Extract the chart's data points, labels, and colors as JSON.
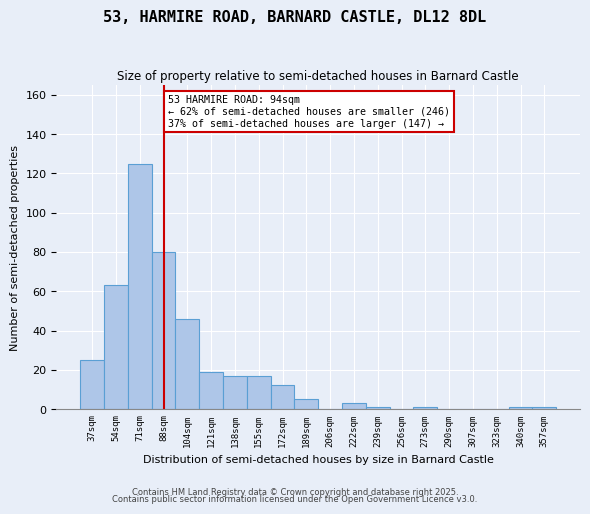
{
  "title": "53, HARMIRE ROAD, BARNARD CASTLE, DL12 8DL",
  "subtitle": "Size of property relative to semi-detached houses in Barnard Castle",
  "xlabel": "Distribution of semi-detached houses by size in Barnard Castle",
  "ylabel": "Number of semi-detached properties",
  "bar_values": [
    25,
    63,
    125,
    80,
    46,
    19,
    17,
    17,
    12,
    5,
    0,
    3,
    1,
    0,
    1,
    0,
    0,
    0,
    1,
    1
  ],
  "bin_labels": [
    "37sqm",
    "54sqm",
    "71sqm",
    "88sqm",
    "104sqm",
    "121sqm",
    "138sqm",
    "155sqm",
    "172sqm",
    "189sqm",
    "206sqm",
    "222sqm",
    "239sqm",
    "256sqm",
    "273sqm",
    "290sqm",
    "307sqm",
    "323sqm",
    "340sqm",
    "357sqm"
  ],
  "bar_color": "#aec6e8",
  "bar_edge_color": "#5a9fd4",
  "vline_x": 3.0,
  "vline_color": "#cc0000",
  "annotation_text": "53 HARMIRE ROAD: 94sqm\n← 62% of semi-detached houses are smaller (246)\n37% of semi-detached houses are larger (147) →",
  "annotation_box_color": "#ffffff",
  "annotation_box_edge": "#cc0000",
  "ylim": [
    0,
    165
  ],
  "yticks": [
    0,
    20,
    40,
    60,
    80,
    100,
    120,
    140,
    160
  ],
  "footer1": "Contains HM Land Registry data © Crown copyright and database right 2025.",
  "footer2": "Contains public sector information licensed under the Open Government Licence v3.0.",
  "background_color": "#e8eef8",
  "plot_bg_color": "#e8eef8"
}
